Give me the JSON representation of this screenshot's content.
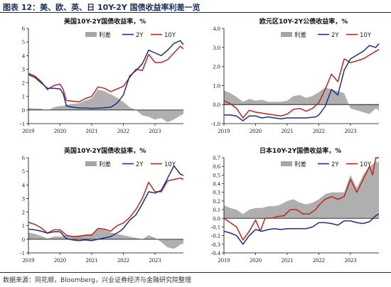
{
  "figure": {
    "title": "图表 12：美、欧、英、日 10Y-2Y 国债收益率利差一览",
    "source": "数据来源：同花顺，Bloomberg，兴业证券经济与金融研究院整理"
  },
  "colors": {
    "spread": "#a6a6a6",
    "y2": "#1f2d8a",
    "y10": "#c0251e"
  },
  "chart_data": [
    {
      "type": "area+line",
      "title": "美国10Y-2Y国债收益率，%",
      "legend": [
        "利差",
        "2Y",
        "10Y"
      ],
      "legend_position": "top-right",
      "x_range": [
        2019.0,
        2023.9
      ],
      "x_ticks": [
        2019,
        2020,
        2021,
        2022,
        2023
      ],
      "ylim": [
        -1,
        6
      ],
      "y_ticks": [
        -1,
        0,
        1,
        2,
        3,
        4,
        5,
        6
      ],
      "y_tick_labels": [
        "-1",
        "0",
        "1",
        "2",
        "3",
        "4",
        "5",
        "6"
      ],
      "grid": false,
      "series": [
        {
          "name": "2Y",
          "x": [
            2019.0,
            2019.2,
            2019.4,
            2019.6,
            2019.8,
            2020.0,
            2020.1,
            2020.2,
            2020.4,
            2020.6,
            2020.8,
            2021.0,
            2021.3,
            2021.6,
            2021.8,
            2022.0,
            2022.2,
            2022.4,
            2022.6,
            2022.8,
            2023.0,
            2023.2,
            2023.4,
            2023.6,
            2023.8,
            2023.9
          ],
          "y": [
            2.6,
            2.4,
            2.0,
            1.6,
            1.6,
            1.55,
            1.2,
            0.3,
            0.2,
            0.15,
            0.15,
            0.12,
            0.15,
            0.2,
            0.5,
            1.1,
            2.5,
            2.9,
            3.4,
            4.4,
            4.2,
            4.0,
            4.4,
            4.9,
            5.1,
            4.8
          ]
        },
        {
          "name": "10Y",
          "x": [
            2019.0,
            2019.2,
            2019.4,
            2019.6,
            2019.8,
            2020.0,
            2020.1,
            2020.2,
            2020.4,
            2020.6,
            2020.8,
            2021.0,
            2021.2,
            2021.4,
            2021.6,
            2021.8,
            2022.0,
            2022.2,
            2022.4,
            2022.6,
            2022.8,
            2023.0,
            2023.2,
            2023.4,
            2023.6,
            2023.8,
            2023.9
          ],
          "y": [
            2.7,
            2.5,
            2.1,
            1.5,
            1.8,
            1.9,
            1.5,
            0.7,
            0.65,
            0.6,
            0.85,
            1.0,
            1.7,
            1.6,
            1.35,
            1.55,
            1.75,
            2.4,
            3.0,
            2.9,
            4.1,
            3.5,
            3.5,
            3.7,
            4.2,
            4.7,
            4.5
          ]
        },
        {
          "name": "利差",
          "x": [
            2019.0,
            2019.2,
            2019.4,
            2019.6,
            2019.8,
            2020.0,
            2020.1,
            2020.2,
            2020.4,
            2020.6,
            2020.8,
            2021.0,
            2021.2,
            2021.4,
            2021.6,
            2021.8,
            2022.0,
            2022.2,
            2022.4,
            2022.6,
            2022.8,
            2023.0,
            2023.2,
            2023.4,
            2023.6,
            2023.8,
            2023.9
          ],
          "y": [
            0.15,
            0.1,
            0.1,
            -0.05,
            0.2,
            0.3,
            0.3,
            0.4,
            0.45,
            0.5,
            0.7,
            0.85,
            1.5,
            1.4,
            1.15,
            0.9,
            0.6,
            0.2,
            0.0,
            -0.4,
            -0.5,
            -0.7,
            -0.6,
            -0.9,
            -0.7,
            -0.4,
            -0.3
          ]
        }
      ]
    },
    {
      "type": "area+line",
      "title": "欧元区10Y-2Y公债收益率，%",
      "legend": [
        "利差",
        "2Y",
        "10Y"
      ],
      "legend_position": "top-right",
      "x_range": [
        2019.0,
        2023.9
      ],
      "x_ticks": [
        2019,
        2020,
        2021,
        2022,
        2023
      ],
      "ylim": [
        -1,
        4
      ],
      "y_ticks": [
        -1,
        0,
        1,
        2,
        3,
        4
      ],
      "y_tick_labels": [
        "-1.0",
        "0.0",
        "1.0",
        "2.0",
        "3.0",
        "4.0"
      ],
      "grid": false,
      "series": [
        {
          "name": "2Y",
          "x": [
            2019.0,
            2019.2,
            2019.4,
            2019.6,
            2019.8,
            2020.0,
            2020.2,
            2020.4,
            2020.6,
            2020.8,
            2021.0,
            2021.3,
            2021.6,
            2021.9,
            2022.0,
            2022.2,
            2022.4,
            2022.6,
            2022.8,
            2023.0,
            2023.2,
            2023.4,
            2023.6,
            2023.8,
            2023.9
          ],
          "y": [
            -0.55,
            -0.55,
            -0.6,
            -0.85,
            -0.6,
            -0.6,
            -0.7,
            -0.65,
            -0.7,
            -0.75,
            -0.7,
            -0.7,
            -0.7,
            -0.65,
            -0.55,
            -0.1,
            0.8,
            0.5,
            1.8,
            2.4,
            2.6,
            2.8,
            3.1,
            3.0,
            3.2
          ]
        },
        {
          "name": "10Y",
          "x": [
            2019.0,
            2019.2,
            2019.4,
            2019.6,
            2019.8,
            2020.0,
            2020.2,
            2020.4,
            2020.6,
            2020.8,
            2021.0,
            2021.2,
            2021.4,
            2021.6,
            2021.8,
            2022.0,
            2022.2,
            2022.4,
            2022.6,
            2022.8,
            2023.0,
            2023.2,
            2023.4,
            2023.6,
            2023.8,
            2023.9
          ],
          "y": [
            0.2,
            0.05,
            -0.2,
            -0.7,
            -0.3,
            -0.4,
            -0.45,
            -0.5,
            -0.55,
            -0.6,
            -0.5,
            -0.25,
            -0.2,
            -0.35,
            -0.2,
            0.1,
            0.8,
            1.6,
            1.2,
            2.4,
            2.2,
            2.3,
            2.4,
            2.6,
            2.8,
            2.9
          ]
        },
        {
          "name": "利差",
          "x": [
            2019.0,
            2019.2,
            2019.4,
            2019.6,
            2019.8,
            2020.0,
            2020.2,
            2020.4,
            2020.6,
            2020.8,
            2021.0,
            2021.2,
            2021.4,
            2021.6,
            2021.8,
            2022.0,
            2022.2,
            2022.4,
            2022.6,
            2022.8,
            2023.0,
            2023.2,
            2023.4,
            2023.6,
            2023.8,
            2023.9
          ],
          "y": [
            0.75,
            0.6,
            0.4,
            0.15,
            0.3,
            0.2,
            0.25,
            0.15,
            0.15,
            0.15,
            0.2,
            0.45,
            0.5,
            0.35,
            0.45,
            0.65,
            0.9,
            0.8,
            0.7,
            0.6,
            -0.2,
            -0.3,
            -0.4,
            -0.5,
            -0.2,
            -0.3
          ]
        }
      ]
    },
    {
      "type": "area+line",
      "title": "英国10Y-2Y国债收益率，%",
      "legend": [
        "利差",
        "2Y",
        "10Y"
      ],
      "legend_position": "top-right",
      "x_range": [
        2019.0,
        2023.9
      ],
      "x_ticks": [
        2019,
        2020,
        2021,
        2022,
        2023
      ],
      "ylim": [
        -1,
        6
      ],
      "y_ticks": [
        -1,
        0,
        1,
        2,
        3,
        4,
        5,
        6
      ],
      "y_tick_labels": [
        "-1",
        "0",
        "1",
        "2",
        "3",
        "4",
        "5",
        "6"
      ],
      "grid": false,
      "series": [
        {
          "name": "2Y",
          "x": [
            2019.0,
            2019.2,
            2019.4,
            2019.6,
            2019.8,
            2020.0,
            2020.2,
            2020.4,
            2020.6,
            2020.8,
            2021.0,
            2021.3,
            2021.6,
            2021.9,
            2022.0,
            2022.2,
            2022.4,
            2022.6,
            2022.8,
            2023.0,
            2023.2,
            2023.4,
            2023.6,
            2023.8,
            2023.9
          ],
          "y": [
            0.75,
            0.7,
            0.6,
            0.45,
            0.55,
            0.55,
            0.05,
            -0.05,
            -0.1,
            -0.05,
            -0.1,
            0.05,
            0.2,
            0.6,
            0.8,
            1.4,
            1.8,
            2.6,
            3.5,
            3.4,
            3.6,
            4.5,
            5.4,
            4.8,
            4.7
          ]
        },
        {
          "name": "10Y",
          "x": [
            2019.0,
            2019.2,
            2019.4,
            2019.6,
            2019.8,
            2020.0,
            2020.2,
            2020.4,
            2020.6,
            2020.8,
            2021.0,
            2021.2,
            2021.4,
            2021.6,
            2021.8,
            2022.0,
            2022.2,
            2022.4,
            2022.6,
            2022.8,
            2023.0,
            2023.2,
            2023.4,
            2023.6,
            2023.8,
            2023.9
          ],
          "y": [
            1.25,
            1.1,
            0.85,
            0.45,
            0.7,
            0.7,
            0.3,
            0.2,
            0.2,
            0.3,
            0.3,
            0.8,
            0.75,
            0.6,
            1.0,
            1.2,
            1.6,
            2.2,
            3.0,
            4.2,
            3.5,
            3.5,
            4.3,
            4.4,
            4.5,
            4.4
          ]
        },
        {
          "name": "利差",
          "x": [
            2019.0,
            2019.2,
            2019.4,
            2019.6,
            2019.8,
            2020.0,
            2020.2,
            2020.4,
            2020.6,
            2020.8,
            2021.0,
            2021.2,
            2021.4,
            2021.6,
            2021.8,
            2022.0,
            2022.2,
            2022.4,
            2022.6,
            2022.8,
            2023.0,
            2023.2,
            2023.4,
            2023.6,
            2023.8,
            2023.9
          ],
          "y": [
            0.5,
            0.4,
            0.25,
            0.05,
            0.2,
            0.2,
            0.3,
            0.25,
            0.3,
            0.35,
            0.4,
            0.75,
            0.7,
            0.5,
            0.4,
            0.3,
            0.2,
            0.1,
            0.0,
            0.3,
            0.1,
            -0.2,
            -0.6,
            -0.7,
            -0.4,
            -0.3
          ]
        }
      ]
    },
    {
      "type": "area+line",
      "title": "日本10Y-2Y国债收益率，%",
      "legend": [
        "利差",
        "2Y",
        "10Y"
      ],
      "legend_position": "top-right",
      "x_range": [
        2019.0,
        2023.9
      ],
      "x_ticks": [
        2019,
        2020,
        2021,
        2022,
        2023
      ],
      "ylim": [
        -0.4,
        0.7
      ],
      "y_ticks": [
        -0.4,
        -0.3,
        -0.2,
        -0.1,
        0.0,
        0.1,
        0.2,
        0.3,
        0.4,
        0.5,
        0.6,
        0.7
      ],
      "y_tick_labels": [
        "-0.4",
        "-0.3",
        "-0.2",
        "-0.1",
        "0.0",
        "0.1",
        "0.2",
        "0.3",
        "0.4",
        "0.5",
        "0.6",
        "0.7"
      ],
      "grid": false,
      "series": [
        {
          "name": "2Y",
          "x": [
            2019.0,
            2019.2,
            2019.4,
            2019.6,
            2019.8,
            2020.0,
            2020.2,
            2020.4,
            2020.6,
            2020.8,
            2021.0,
            2021.2,
            2021.4,
            2021.6,
            2021.8,
            2022.0,
            2022.2,
            2022.4,
            2022.6,
            2022.8,
            2023.0,
            2023.2,
            2023.4,
            2023.6,
            2023.8,
            2023.9
          ],
          "y": [
            -0.15,
            -0.17,
            -0.2,
            -0.3,
            -0.2,
            -0.13,
            -0.15,
            -0.13,
            -0.12,
            -0.13,
            -0.12,
            -0.12,
            -0.12,
            -0.12,
            -0.1,
            -0.05,
            -0.05,
            -0.06,
            -0.08,
            -0.03,
            -0.03,
            -0.05,
            -0.06,
            -0.04,
            0.03,
            0.05
          ]
        },
        {
          "name": "10Y",
          "x": [
            2019.0,
            2019.2,
            2019.4,
            2019.6,
            2019.8,
            2020.0,
            2020.15,
            2020.3,
            2020.5,
            2020.7,
            2020.9,
            2021.1,
            2021.3,
            2021.5,
            2021.7,
            2021.9,
            2022.0,
            2022.2,
            2022.4,
            2022.6,
            2022.8,
            2023.0,
            2023.2,
            2023.4,
            2023.6,
            2023.7,
            2023.8,
            2023.9
          ],
          "y": [
            0.0,
            -0.05,
            -0.1,
            -0.25,
            -0.15,
            -0.02,
            -0.15,
            0.0,
            0.0,
            0.02,
            0.03,
            0.1,
            0.1,
            0.05,
            0.05,
            0.1,
            0.15,
            0.22,
            0.25,
            0.22,
            0.25,
            0.45,
            0.3,
            0.45,
            0.6,
            0.5,
            0.7,
            0.7
          ]
        },
        {
          "name": "利差",
          "x": [
            2019.0,
            2019.2,
            2019.4,
            2019.6,
            2019.8,
            2020.0,
            2020.2,
            2020.4,
            2020.6,
            2020.8,
            2021.0,
            2021.2,
            2021.4,
            2021.6,
            2021.8,
            2022.0,
            2022.2,
            2022.4,
            2022.6,
            2022.8,
            2023.0,
            2023.2,
            2023.4,
            2023.6,
            2023.8,
            2023.9
          ],
          "y": [
            0.15,
            0.12,
            0.1,
            0.05,
            0.1,
            0.12,
            0.12,
            0.14,
            0.14,
            0.16,
            0.2,
            0.22,
            0.18,
            0.16,
            0.18,
            0.22,
            0.28,
            0.3,
            0.3,
            0.3,
            0.5,
            0.35,
            0.5,
            0.6,
            0.65,
            0.65
          ]
        }
      ]
    }
  ]
}
